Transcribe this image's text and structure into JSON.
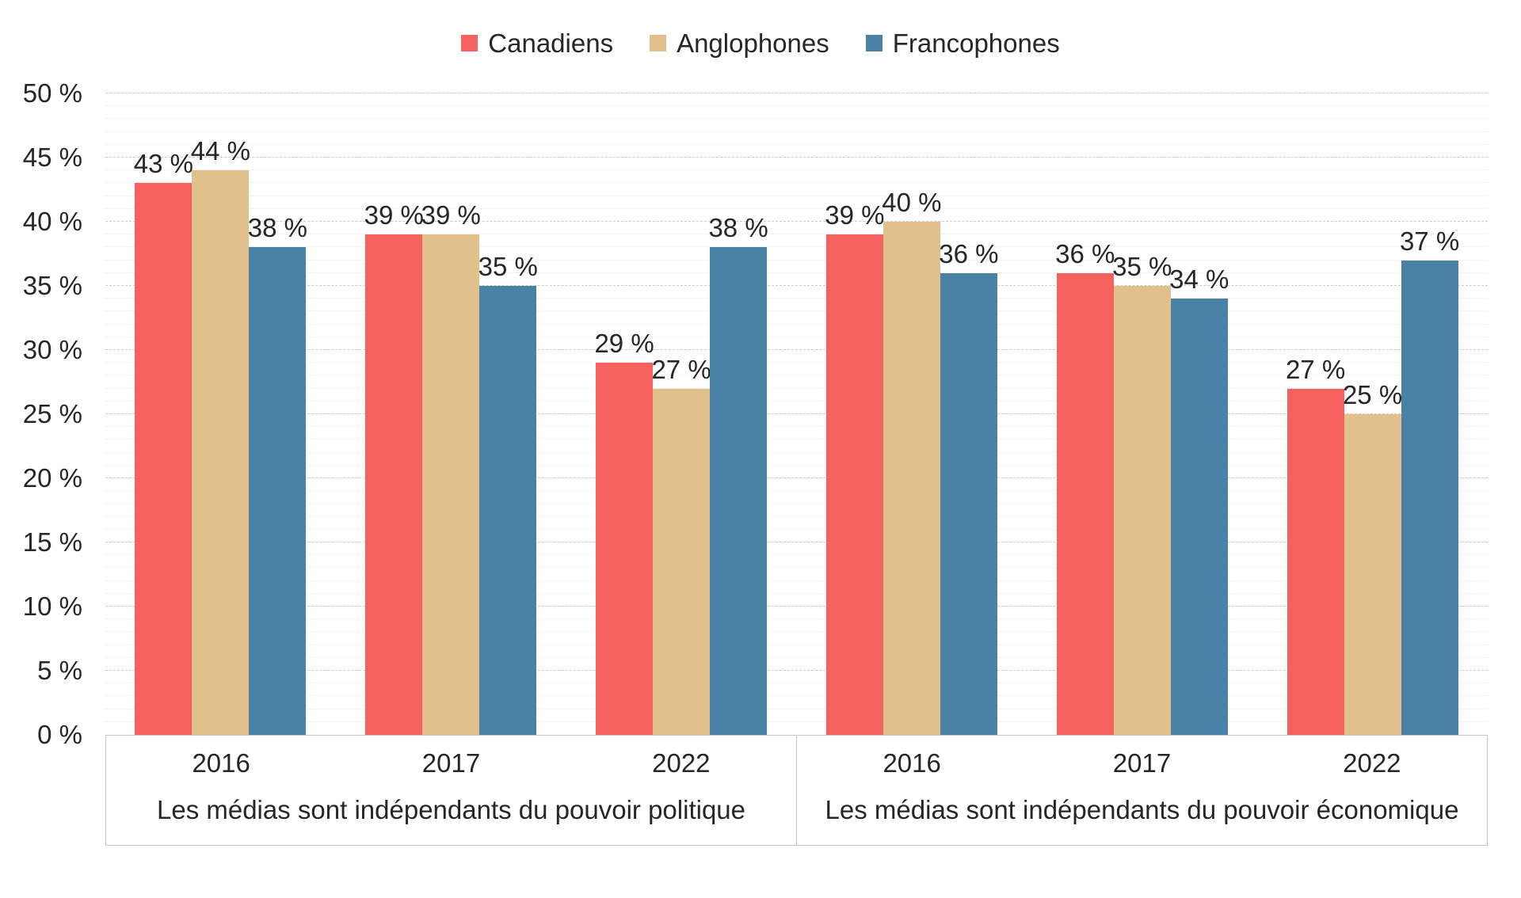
{
  "chart_data": {
    "type": "bar",
    "title": "",
    "legend_entries": [
      "Canadiens",
      "Anglophones",
      "Francophones"
    ],
    "legend_position": "top-center",
    "series_colors": {
      "Canadiens": "#F4615E",
      "Anglophones": "#E2C08D",
      "Francophones": "#4A82A6"
    },
    "ylim": [
      0,
      50
    ],
    "y_major_step": 5,
    "y_minor_step": 1,
    "ytick_labels": [
      "0 %",
      "5 %",
      "10 %",
      "15 %",
      "20 %",
      "25 %",
      "30 %",
      "35 %",
      "40 %",
      "45 %",
      "50 %"
    ],
    "grid": "horizontal; dashed major every 5 %, dotted minor every 1 %",
    "data_label_format": "{value} %",
    "groups": [
      {
        "label": "Les médias sont indépendants du pouvoir politique",
        "categories": [
          "2016",
          "2017",
          "2022"
        ],
        "series": [
          {
            "name": "Canadiens",
            "values": [
              43,
              39,
              29
            ]
          },
          {
            "name": "Anglophones",
            "values": [
              44,
              39,
              27
            ]
          },
          {
            "name": "Francophones",
            "values": [
              38,
              35,
              38
            ]
          }
        ]
      },
      {
        "label": "Les médias sont indépendants du pouvoir économique",
        "categories": [
          "2016",
          "2017",
          "2022"
        ],
        "series": [
          {
            "name": "Canadiens",
            "values": [
              39,
              36,
              27
            ]
          },
          {
            "name": "Anglophones",
            "values": [
              40,
              35,
              25
            ]
          },
          {
            "name": "Francophones",
            "values": [
              36,
              34,
              37
            ]
          }
        ]
      }
    ]
  },
  "colors": {
    "background": "#FFFFFF",
    "text": "#262626",
    "grid_major": "#CBCBCB",
    "grid_minor": "#E9E9E9",
    "axis_box_border": "#C6C6C6"
  }
}
